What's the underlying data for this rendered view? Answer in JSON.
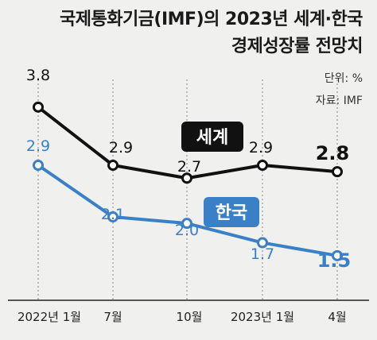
{
  "title_line1": "국제통화기금(IMF)의 2023년 세계·한국",
  "title_line2": "경제성장률 전망치",
  "unit": "단위: %",
  "source": "자료: IMF",
  "colors": {
    "world": "#111111",
    "korea": "#3a80c6",
    "background": "#f0f0ef",
    "guide": "#9a9a9a"
  },
  "chart_data": {
    "type": "line",
    "title": "국제통화기금(IMF)의 2023년 세계·한국 경제성장률 전망치",
    "categories": [
      "2022년 1월",
      "7월",
      "10월",
      "2023년 1월",
      "4월"
    ],
    "series": [
      {
        "name": "세계",
        "values": [
          3.8,
          2.9,
          2.7,
          2.9,
          2.8
        ],
        "labels": [
          "3.8",
          "2.9",
          "2.7",
          "2.9",
          "2.8"
        ]
      },
      {
        "name": "한국",
        "values": [
          2.9,
          2.1,
          2.0,
          1.7,
          1.5
        ],
        "labels": [
          "2.9",
          "2.1",
          "2.0",
          "1.7",
          "1.5"
        ]
      }
    ],
    "ylabel": "",
    "xlabel": "",
    "unit": "%",
    "grid": false,
    "legend": "inline labels"
  }
}
